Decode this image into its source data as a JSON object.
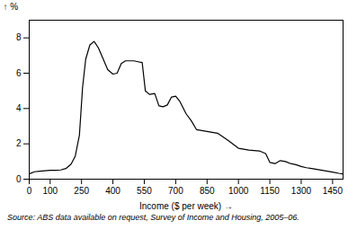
{
  "chart_data": {
    "type": "line",
    "x": [
      0,
      25,
      50,
      75,
      100,
      125,
      150,
      175,
      200,
      220,
      240,
      255,
      270,
      290,
      310,
      330,
      350,
      375,
      400,
      420,
      440,
      460,
      480,
      500,
      520,
      540,
      555,
      575,
      600,
      620,
      640,
      660,
      680,
      700,
      720,
      750,
      775,
      800,
      825,
      850,
      875,
      900,
      950,
      1000,
      1050,
      1100,
      1130,
      1150,
      1175,
      1200,
      1225,
      1250,
      1275,
      1300,
      1325,
      1350,
      1400,
      1450,
      1480,
      1500
    ],
    "values": [
      0.3,
      0.42,
      0.45,
      0.48,
      0.5,
      0.5,
      0.52,
      0.6,
      0.85,
      1.3,
      2.5,
      5.2,
      6.8,
      7.6,
      7.8,
      7.45,
      6.9,
      6.2,
      5.95,
      6.0,
      6.55,
      6.7,
      6.7,
      6.7,
      6.65,
      6.6,
      5.0,
      4.8,
      4.85,
      4.15,
      4.1,
      4.2,
      4.65,
      4.7,
      4.4,
      3.7,
      3.3,
      2.8,
      2.75,
      2.7,
      2.65,
      2.6,
      2.2,
      1.75,
      1.65,
      1.6,
      1.45,
      0.95,
      0.88,
      1.05,
      1.0,
      0.88,
      0.82,
      0.72,
      0.65,
      0.6,
      0.5,
      0.4,
      0.33,
      0.3
    ],
    "color": "#000000",
    "xlabel": "Income ($ per week)",
    "ylabel": "%",
    "xlim": [
      0,
      1500
    ],
    "ylim": [
      0,
      9
    ],
    "xticks": [
      0,
      100,
      250,
      400,
      550,
      700,
      850,
      1000,
      1150,
      1300,
      1450
    ],
    "yticks": [
      0,
      2,
      4,
      6,
      8
    ],
    "grid": false,
    "annotations": [
      "Source: ABS data available on request,  Survey of Income and Housing,  2005–06."
    ]
  }
}
